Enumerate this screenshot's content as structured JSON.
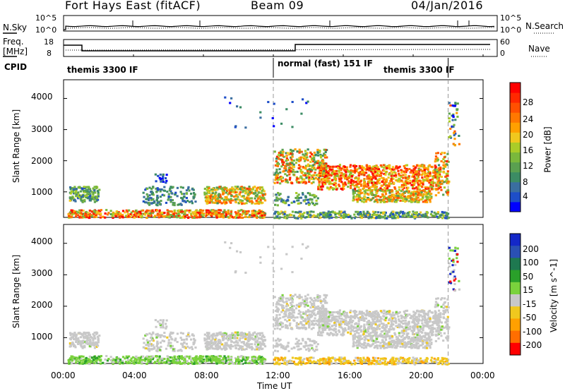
{
  "header": {
    "title": "Fort Hays East (fitACF)",
    "beam": "Beam 09",
    "date": "04/Jan/2016"
  },
  "nsky_panel": {
    "left_label": "N.Sky",
    "left_ticks": [
      "10^5",
      "10^0"
    ],
    "right_ticks": [
      "10^5",
      "10^0"
    ],
    "right_label": "N.Search"
  },
  "freq_panel": {
    "left_label_1": "Freq.",
    "left_label_2": "[MHz]",
    "left_ticks": [
      "18",
      "8"
    ],
    "right_ticks": [
      "60",
      "0"
    ],
    "right_label": "Nave"
  },
  "cpid": {
    "label": "CPID",
    "modes": [
      "themis 3300 IF",
      "normal (fast) 151 IF",
      "themis 3300 IF"
    ]
  },
  "chart_data": [
    {
      "type": "heatmap",
      "name": "power",
      "ylabel": "Slant Range [km]",
      "ylim": [
        180,
        4600
      ],
      "yticks": [
        1000,
        2000,
        3000,
        4000
      ],
      "xlim": [
        0,
        24
      ],
      "colorbar_label": "Power [dB]",
      "colorbar_ticks": [
        "28",
        "24",
        "20",
        "16",
        "12",
        "8",
        "4"
      ],
      "colorbar_colors": [
        "#0000ff",
        "#1e4ec8",
        "#3a6ea0",
        "#3c8c64",
        "#5aa050",
        "#7ab83c",
        "#aacc28",
        "#f0c81e",
        "#ffa000",
        "#ff7800",
        "#ff5000",
        "#ff2800",
        "#ff0000"
      ]
    },
    {
      "type": "heatmap",
      "name": "velocity",
      "ylabel": "Slant Range [km]",
      "ylim": [
        180,
        4600
      ],
      "yticks": [
        1000,
        2000,
        3000,
        4000
      ],
      "xlim": [
        0,
        24
      ],
      "colorbar_label": "Velocity [m s^-1]",
      "colorbar_ticks": [
        "200",
        "100",
        "50",
        "15",
        "-15",
        "-50",
        "-100",
        "-200"
      ],
      "colorbar_colors": [
        "#1428c8",
        "#2a50b4",
        "#1e7850",
        "#2aa02a",
        "#7ad23c",
        "#c8c8c8",
        "#f0c81e",
        "#ffa000",
        "#ff6e00",
        "#ff0000"
      ]
    }
  ],
  "x_axis": {
    "ticks": [
      "00:00",
      "04:00",
      "08:00",
      "12:00",
      "16:00",
      "20:00",
      "00:00"
    ],
    "label": "Time UT"
  },
  "mode_changes_ut": [
    12.0,
    22.0
  ]
}
